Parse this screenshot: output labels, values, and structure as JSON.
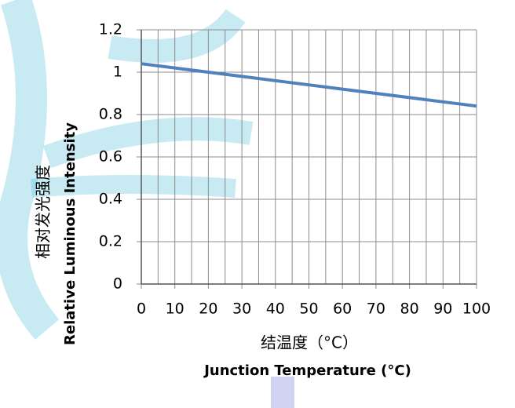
{
  "chart_data": {
    "type": "line",
    "x_title": "结温度（°C）",
    "x_title_en": "Junction Temperature (°C)",
    "y_title": "相对发光强度",
    "y_title_en": "Relative Luminous Intensity",
    "x": [
      0,
      10,
      20,
      30,
      40,
      50,
      60,
      70,
      80,
      90,
      100
    ],
    "series": [
      {
        "color": "#4f81bd",
        "values": [
          1.04,
          1.02,
          1.0,
          0.98,
          0.96,
          0.94,
          0.92,
          0.9,
          0.88,
          0.86,
          0.84
        ]
      }
    ],
    "xlim": [
      0,
      100
    ],
    "xticks": [
      0,
      10,
      20,
      30,
      40,
      50,
      60,
      70,
      80,
      90,
      100
    ],
    "x_minor_grid": [
      5,
      15,
      25,
      35,
      45,
      55,
      65,
      75,
      85,
      95
    ],
    "ylim": [
      0,
      1.2
    ],
    "yticks": [
      0,
      0.2,
      0.4,
      0.6,
      0.8,
      1,
      1.2
    ],
    "grid": true
  }
}
